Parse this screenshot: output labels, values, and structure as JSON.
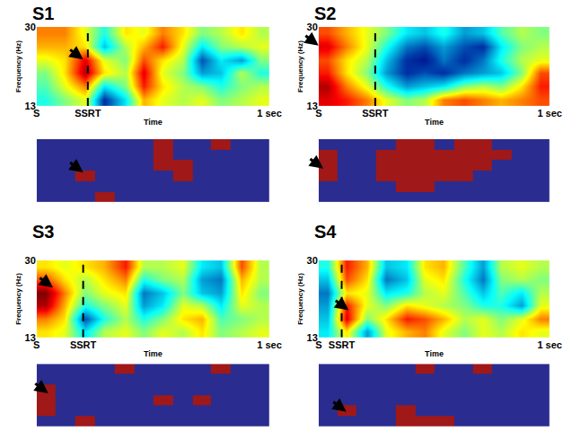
{
  "chart_data": [
    {
      "type": "heatmap",
      "title": "S1",
      "x_label": "Time",
      "y_label": "Frequency (Hz)",
      "xlim": [
        0,
        1
      ],
      "ylim": [
        13,
        30
      ],
      "xticks": [
        {
          "value": 0,
          "label": "S"
        },
        {
          "value": 0.22,
          "label": "SSRT"
        },
        {
          "value": 1,
          "label": "1 sec"
        }
      ],
      "yticks": [
        13,
        30
      ],
      "ssrt": 0.22,
      "zlim": [
        -1,
        1
      ],
      "x": [
        0.04,
        0.12,
        0.21,
        0.29,
        0.38,
        0.46,
        0.54,
        0.63,
        0.71,
        0.79,
        0.88,
        0.96
      ],
      "y": [
        14.4,
        17.2,
        20.1,
        22.9,
        25.8,
        28.6
      ],
      "z": [
        [
          -0.2,
          0.0,
          0.2,
          -0.8,
          -0.3,
          0.4,
          0.2,
          0.1,
          0.2,
          0.0,
          0.1,
          0.2
        ],
        [
          -0.1,
          0.2,
          0.5,
          -0.3,
          0.0,
          0.7,
          0.3,
          0.1,
          0.0,
          -0.2,
          0.0,
          0.1
        ],
        [
          0.0,
          0.3,
          0.9,
          0.3,
          0.1,
          0.8,
          0.2,
          0.0,
          -0.5,
          -0.4,
          0.1,
          -0.2
        ],
        [
          0.2,
          0.3,
          0.8,
          0.2,
          0.0,
          0.6,
          0.3,
          0.1,
          -0.7,
          -0.3,
          -0.5,
          0.0
        ],
        [
          0.4,
          0.4,
          0.3,
          -0.4,
          0.1,
          0.4,
          0.7,
          0.2,
          -0.3,
          0.0,
          0.1,
          0.2
        ],
        [
          0.5,
          0.5,
          0.2,
          -0.2,
          0.3,
          0.2,
          0.5,
          0.3,
          0.0,
          0.1,
          0.3,
          0.1
        ]
      ],
      "arrow": {
        "x": 0.2,
        "y": 23
      },
      "mask": {
        "type": "mask",
        "tick_labels": false,
        "xlim": [
          0,
          1
        ],
        "ylim": [
          13,
          30
        ],
        "colors": [
          "#2a2d8f",
          "#a01818"
        ],
        "z": [
          [
            0,
            0,
            0,
            1,
            0,
            0,
            0,
            0,
            0,
            0,
            0,
            0
          ],
          [
            0,
            0,
            0,
            0,
            0,
            0,
            0,
            0,
            0,
            0,
            0,
            0
          ],
          [
            0,
            0,
            1,
            0,
            0,
            0,
            0,
            1,
            0,
            0,
            0,
            0
          ],
          [
            0,
            0,
            0,
            0,
            0,
            0,
            1,
            1,
            0,
            0,
            0,
            0
          ],
          [
            0,
            0,
            0,
            0,
            0,
            0,
            1,
            0,
            0,
            0,
            0,
            0
          ],
          [
            0,
            0,
            0,
            0,
            0,
            0,
            1,
            0,
            0,
            1,
            0,
            0
          ]
        ],
        "arrow": {
          "x": 0.2,
          "y": 21
        }
      }
    },
    {
      "type": "heatmap",
      "title": "S2",
      "x_label": "Time",
      "y_label": "Frequency (Hz)",
      "xlim": [
        0,
        1
      ],
      "ylim": [
        13,
        30
      ],
      "xticks": [
        {
          "value": 0,
          "label": "S"
        },
        {
          "value": 0.245,
          "label": "SSRT"
        },
        {
          "value": 1,
          "label": "1 sec"
        }
      ],
      "yticks": [
        13,
        30
      ],
      "ssrt": 0.245,
      "zlim": [
        -1,
        1
      ],
      "x": [
        0.04,
        0.12,
        0.21,
        0.29,
        0.38,
        0.46,
        0.54,
        0.63,
        0.71,
        0.79,
        0.88,
        0.96
      ],
      "y": [
        14.4,
        17.2,
        20.1,
        22.9,
        25.8,
        28.6
      ],
      "z": [
        [
          0.8,
          0.7,
          0.5,
          0.2,
          0.0,
          0.1,
          0.5,
          0.6,
          0.5,
          0.4,
          0.5,
          0.6
        ],
        [
          0.9,
          0.5,
          0.2,
          -0.2,
          -0.5,
          -0.4,
          -0.3,
          0.0,
          0.1,
          0.0,
          0.3,
          0.7
        ],
        [
          0.7,
          0.3,
          0.0,
          -0.5,
          -0.8,
          -0.7,
          -0.8,
          -0.6,
          -0.5,
          -0.4,
          0.0,
          0.6
        ],
        [
          0.6,
          0.3,
          0.1,
          -0.4,
          -0.8,
          -0.9,
          -0.6,
          -0.8,
          -0.6,
          -0.2,
          0.1,
          0.2
        ],
        [
          0.8,
          0.5,
          0.2,
          -0.2,
          -0.6,
          -0.7,
          -0.5,
          -0.7,
          -0.8,
          -0.3,
          0.0,
          0.1
        ],
        [
          0.6,
          0.4,
          0.2,
          0.0,
          -0.3,
          -0.4,
          -0.2,
          -0.5,
          -0.4,
          -0.1,
          0.1,
          0.0
        ]
      ],
      "arrow": {
        "x": 0.0,
        "y": 26
      },
      "mask": {
        "type": "mask",
        "tick_labels": false,
        "xlim": [
          0,
          1
        ],
        "ylim": [
          13,
          30
        ],
        "colors": [
          "#2a2d8f",
          "#a01818"
        ],
        "z": [
          [
            0,
            0,
            0,
            0,
            0,
            0,
            0,
            0,
            0,
            0,
            0,
            0
          ],
          [
            0,
            0,
            0,
            0,
            1,
            1,
            0,
            0,
            0,
            0,
            0,
            0
          ],
          [
            1,
            0,
            0,
            1,
            1,
            1,
            1,
            1,
            0,
            0,
            0,
            0
          ],
          [
            1,
            0,
            0,
            1,
            1,
            1,
            1,
            1,
            1,
            0,
            0,
            0
          ],
          [
            1,
            0,
            0,
            1,
            1,
            1,
            1,
            1,
            1,
            1,
            0,
            0
          ],
          [
            0,
            0,
            0,
            0,
            1,
            1,
            0,
            1,
            1,
            0,
            0,
            0
          ]
        ],
        "arrow": {
          "x": 0.02,
          "y": 22
        }
      }
    },
    {
      "type": "heatmap",
      "title": "S3",
      "x_label": "Time",
      "y_label": "Frequency (Hz)",
      "xlim": [
        0,
        1
      ],
      "ylim": [
        13,
        30
      ],
      "xticks": [
        {
          "value": 0,
          "label": "S"
        },
        {
          "value": 0.2,
          "label": "SSRT"
        },
        {
          "value": 1,
          "label": "1 sec"
        }
      ],
      "yticks": [
        13,
        30
      ],
      "ssrt": 0.2,
      "zlim": [
        -1,
        1
      ],
      "x": [
        0.04,
        0.12,
        0.21,
        0.29,
        0.38,
        0.46,
        0.54,
        0.63,
        0.71,
        0.79,
        0.88,
        0.96
      ],
      "y": [
        14.4,
        17.2,
        20.1,
        22.9,
        25.8,
        28.6
      ],
      "z": [
        [
          0.3,
          0.2,
          -0.3,
          0.1,
          0.2,
          0.0,
          0.2,
          0.1,
          0.3,
          0.0,
          0.1,
          0.2
        ],
        [
          0.5,
          0.3,
          -0.7,
          -0.2,
          0.1,
          -0.2,
          0.0,
          0.3,
          0.4,
          -0.1,
          0.0,
          0.1
        ],
        [
          0.9,
          0.4,
          -0.2,
          0.0,
          0.2,
          -0.5,
          -0.3,
          0.2,
          0.1,
          -0.3,
          0.2,
          0.1
        ],
        [
          1.0,
          0.5,
          0.0,
          0.2,
          0.3,
          -0.6,
          -0.4,
          0.0,
          -0.4,
          -0.5,
          0.3,
          0.0
        ],
        [
          0.6,
          0.3,
          0.1,
          0.3,
          0.5,
          -0.2,
          0.0,
          0.1,
          -0.5,
          -0.6,
          0.4,
          0.1
        ],
        [
          0.3,
          0.2,
          0.3,
          0.4,
          0.7,
          0.1,
          0.1,
          0.2,
          -0.3,
          -0.4,
          0.6,
          0.1
        ]
      ],
      "arrow": {
        "x": 0.07,
        "y": 24
      },
      "mask": {
        "type": "mask",
        "tick_labels": false,
        "xlim": [
          0,
          1
        ],
        "ylim": [
          13,
          30
        ],
        "colors": [
          "#2a2d8f",
          "#a01818"
        ],
        "z": [
          [
            0,
            0,
            1,
            0,
            0,
            0,
            0,
            0,
            0,
            0,
            0,
            0
          ],
          [
            1,
            0,
            0,
            0,
            0,
            0,
            0,
            0,
            0,
            0,
            0,
            0
          ],
          [
            1,
            0,
            0,
            0,
            0,
            0,
            1,
            0,
            1,
            0,
            0,
            0
          ],
          [
            1,
            0,
            0,
            0,
            0,
            0,
            0,
            0,
            0,
            0,
            0,
            0
          ],
          [
            0,
            0,
            0,
            0,
            0,
            0,
            0,
            0,
            0,
            0,
            0,
            0
          ],
          [
            0,
            0,
            0,
            0,
            1,
            0,
            0,
            0,
            0,
            1,
            0,
            0
          ]
        ],
        "arrow": {
          "x": 0.05,
          "y": 22
        }
      }
    },
    {
      "type": "heatmap",
      "title": "S4",
      "x_label": "Time",
      "y_label": "Frequency (Hz)",
      "xlim": [
        0,
        1
      ],
      "ylim": [
        13,
        30
      ],
      "xticks": [
        {
          "value": 0,
          "label": "S"
        },
        {
          "value": 0.1,
          "label": "SSRT"
        },
        {
          "value": 1,
          "label": "1 sec"
        }
      ],
      "yticks": [
        13,
        30
      ],
      "ssrt": 0.1,
      "zlim": [
        -1,
        1
      ],
      "x": [
        0.04,
        0.12,
        0.21,
        0.29,
        0.38,
        0.46,
        0.54,
        0.63,
        0.71,
        0.79,
        0.88,
        0.96
      ],
      "y": [
        14.4,
        17.2,
        20.1,
        22.9,
        25.8,
        28.6
      ],
      "z": [
        [
          -0.3,
          0.3,
          -0.5,
          0.2,
          0.4,
          0.5,
          0.2,
          0.0,
          0.2,
          0.1,
          0.3,
          0.2
        ],
        [
          -0.4,
          0.8,
          0.0,
          0.3,
          0.7,
          0.6,
          0.4,
          0.1,
          0.2,
          0.0,
          0.2,
          0.5
        ],
        [
          -0.5,
          0.7,
          0.2,
          0.0,
          0.3,
          0.2,
          0.1,
          0.0,
          -0.2,
          -0.2,
          -0.5,
          0.2
        ],
        [
          -0.6,
          0.3,
          0.2,
          -0.3,
          -0.2,
          0.1,
          0.2,
          -0.1,
          -0.4,
          -0.1,
          -0.3,
          0.1
        ],
        [
          -0.4,
          0.6,
          0.3,
          -0.6,
          -0.4,
          0.2,
          0.3,
          -0.2,
          -0.6,
          0.0,
          0.1,
          0.0
        ],
        [
          -0.2,
          0.7,
          0.4,
          -0.4,
          -0.3,
          0.3,
          0.4,
          -0.1,
          -0.5,
          0.1,
          0.2,
          0.1
        ]
      ],
      "arrow": {
        "x": 0.13,
        "y": 19
      },
      "mask": {
        "type": "mask",
        "tick_labels": false,
        "xlim": [
          0,
          1
        ],
        "ylim": [
          13,
          30
        ],
        "colors": [
          "#2a2d8f",
          "#a01818"
        ],
        "z": [
          [
            0,
            0,
            0,
            0,
            1,
            1,
            1,
            0,
            0,
            0,
            0,
            0
          ],
          [
            0,
            1,
            0,
            0,
            1,
            0,
            0,
            0,
            0,
            0,
            0,
            0
          ],
          [
            0,
            0,
            0,
            0,
            0,
            0,
            0,
            0,
            0,
            0,
            0,
            0
          ],
          [
            0,
            0,
            0,
            0,
            0,
            0,
            0,
            0,
            0,
            0,
            0,
            0
          ],
          [
            0,
            0,
            0,
            0,
            0,
            0,
            0,
            0,
            0,
            0,
            0,
            0
          ],
          [
            0,
            0,
            0,
            0,
            0,
            1,
            0,
            0,
            1,
            0,
            0,
            0
          ]
        ],
        "arrow": {
          "x": 0.12,
          "y": 17
        }
      }
    }
  ]
}
